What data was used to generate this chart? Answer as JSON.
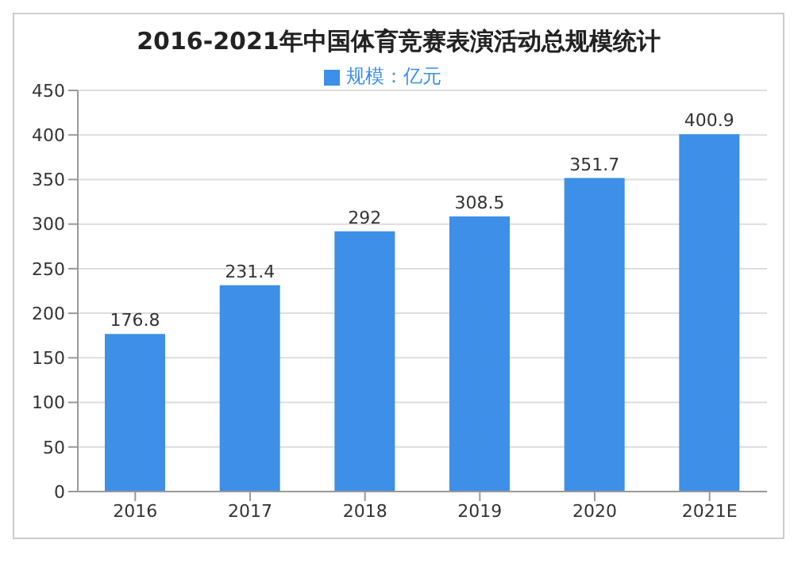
{
  "chart_data": {
    "type": "bar",
    "title": "2016-2021年中国体育竞赛表演活动总规模统计",
    "categories": [
      "2016",
      "2017",
      "2018",
      "2019",
      "2020",
      "2021E"
    ],
    "series": [
      {
        "name": "规模：亿元",
        "color": "#3d8fe8",
        "values": [
          176.8,
          231.4,
          292,
          308.5,
          351.7,
          400.9
        ]
      }
    ],
    "ylim": [
      0,
      450
    ],
    "yticks": [
      0,
      50,
      100,
      150,
      200,
      250,
      300,
      350,
      400,
      450
    ],
    "grid": "y",
    "legend": "top",
    "data_labels": true
  }
}
